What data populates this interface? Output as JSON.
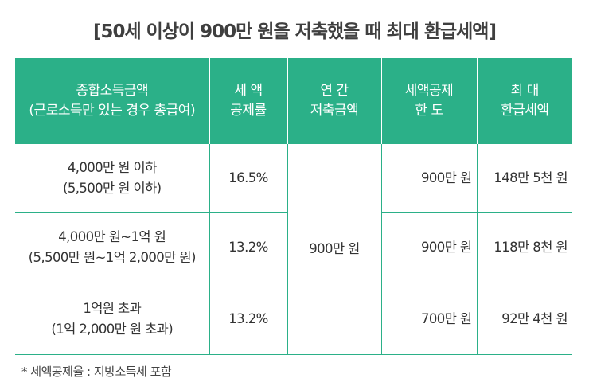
{
  "title": "[50세 이상이 900만 원을 저축했을 때 최대 환급세액]",
  "table": {
    "headers": [
      {
        "line1": "종합소득금액",
        "line2": "(근로소득만 있는 경우 총급여)"
      },
      {
        "line1": "세 액",
        "line2": "공제률"
      },
      {
        "line1": "연 간",
        "line2": "저축금액"
      },
      {
        "line1": "세액공제",
        "line2": "한 도"
      },
      {
        "line1": "최 대",
        "line2": "환급세액"
      }
    ],
    "rows": [
      {
        "income_line1": "4,000만 원 이하",
        "income_line2": "(5,500만 원 이하)",
        "rate": "16.5%",
        "limit": "900만 원",
        "refund": "148만 5천 원"
      },
      {
        "income_line1": "4,000만 원~1억 원",
        "income_line2": "(5,500만 원~1억 2,000만 원)",
        "rate": "13.2%",
        "limit": "900만 원",
        "refund": "118만 8천 원"
      },
      {
        "income_line1": "1억원 초과",
        "income_line2": "(1억 2,000만 원 초과)",
        "rate": "13.2%",
        "limit": "700만 원",
        "refund": "92만 4천 원"
      }
    ],
    "annual_savings": "900만 원"
  },
  "note": "* 세액공제율 : 지방소득세 포함",
  "colors": {
    "header_bg": "#2bb088",
    "border": "#2bb088",
    "title": "#3f3f3f"
  }
}
